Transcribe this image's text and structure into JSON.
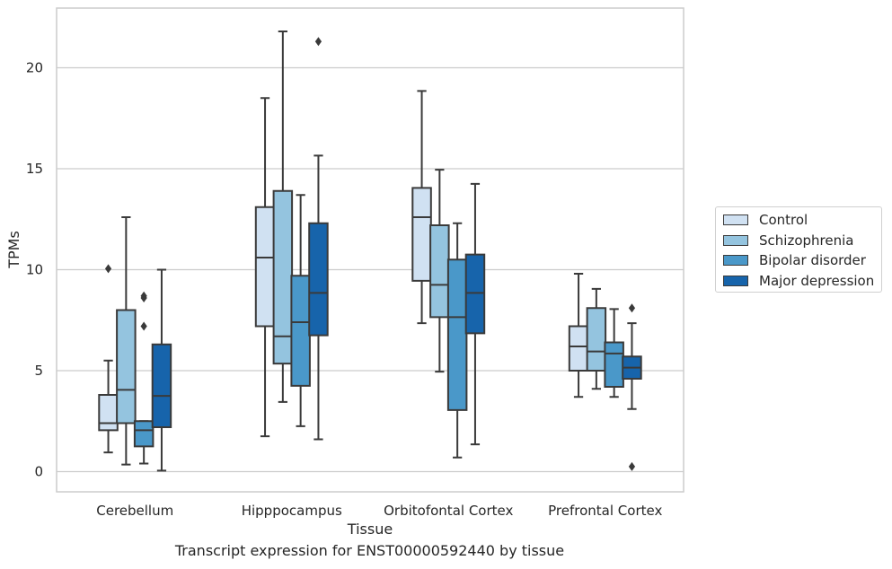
{
  "chart_data": {
    "type": "box",
    "title": "Transcript expression for ENST00000592440 by tissue",
    "xlabel": "Tissue",
    "ylabel": "TPMs",
    "ylim": [
      -1,
      23
    ],
    "yticks": [
      0,
      5,
      10,
      15,
      20
    ],
    "grid": "horizontal",
    "legend_position": "right",
    "categories": [
      "Cerebellum",
      "Hipppocampus",
      "Orbitofontal Cortex",
      "Prefrontal Cortex"
    ],
    "series": [
      {
        "name": "Control",
        "color": "#d0e1f2",
        "boxes": [
          {
            "whisker_low": 0.95,
            "q1": 2.05,
            "median": 2.4,
            "q3": 3.8,
            "whisker_high": 5.5,
            "outliers": [
              10.05
            ]
          },
          {
            "whisker_low": 1.75,
            "q1": 7.2,
            "median": 10.6,
            "q3": 13.1,
            "whisker_high": 18.5,
            "outliers": []
          },
          {
            "whisker_low": 7.35,
            "q1": 9.45,
            "median": 12.6,
            "q3": 14.05,
            "whisker_high": 18.85,
            "outliers": []
          },
          {
            "whisker_low": 3.7,
            "q1": 5.0,
            "median": 6.2,
            "q3": 7.2,
            "whisker_high": 9.8,
            "outliers": []
          }
        ]
      },
      {
        "name": "Schizophrenia",
        "color": "#94c4df",
        "boxes": [
          {
            "whisker_low": 0.35,
            "q1": 2.4,
            "median": 4.05,
            "q3": 8.0,
            "whisker_high": 12.6,
            "outliers": []
          },
          {
            "whisker_low": 3.45,
            "q1": 5.35,
            "median": 6.7,
            "q3": 13.9,
            "whisker_high": 21.8,
            "outliers": []
          },
          {
            "whisker_low": 4.95,
            "q1": 7.65,
            "median": 9.25,
            "q3": 12.2,
            "whisker_high": 14.95,
            "outliers": []
          },
          {
            "whisker_low": 4.1,
            "q1": 5.0,
            "median": 5.95,
            "q3": 8.1,
            "whisker_high": 9.05,
            "outliers": []
          }
        ]
      },
      {
        "name": "Bipolar disorder",
        "color": "#4a98c9",
        "boxes": [
          {
            "whisker_low": 0.4,
            "q1": 1.25,
            "median": 2.05,
            "q3": 2.5,
            "whisker_high": 2.5,
            "outliers": [
              7.2,
              8.6,
              8.7
            ]
          },
          {
            "whisker_low": 2.25,
            "q1": 4.25,
            "median": 7.4,
            "q3": 9.7,
            "whisker_high": 13.7,
            "outliers": []
          },
          {
            "whisker_low": 0.7,
            "q1": 3.05,
            "median": 7.65,
            "q3": 10.5,
            "whisker_high": 12.3,
            "outliers": []
          },
          {
            "whisker_low": 3.7,
            "q1": 4.2,
            "median": 5.85,
            "q3": 6.4,
            "whisker_high": 8.05,
            "outliers": []
          }
        ]
      },
      {
        "name": "Major depression",
        "color": "#1764ab",
        "boxes": [
          {
            "whisker_low": 0.05,
            "q1": 2.2,
            "median": 3.75,
            "q3": 6.3,
            "whisker_high": 10.0,
            "outliers": []
          },
          {
            "whisker_low": 1.6,
            "q1": 6.75,
            "median": 8.85,
            "q3": 12.3,
            "whisker_high": 15.65,
            "outliers": [
              21.3
            ]
          },
          {
            "whisker_low": 1.35,
            "q1": 6.85,
            "median": 8.85,
            "q3": 10.75,
            "whisker_high": 14.25,
            "outliers": []
          },
          {
            "whisker_low": 3.1,
            "q1": 4.6,
            "median": 5.15,
            "q3": 5.7,
            "whisker_high": 7.35,
            "outliers": [
              0.25,
              8.1
            ]
          }
        ]
      }
    ]
  }
}
